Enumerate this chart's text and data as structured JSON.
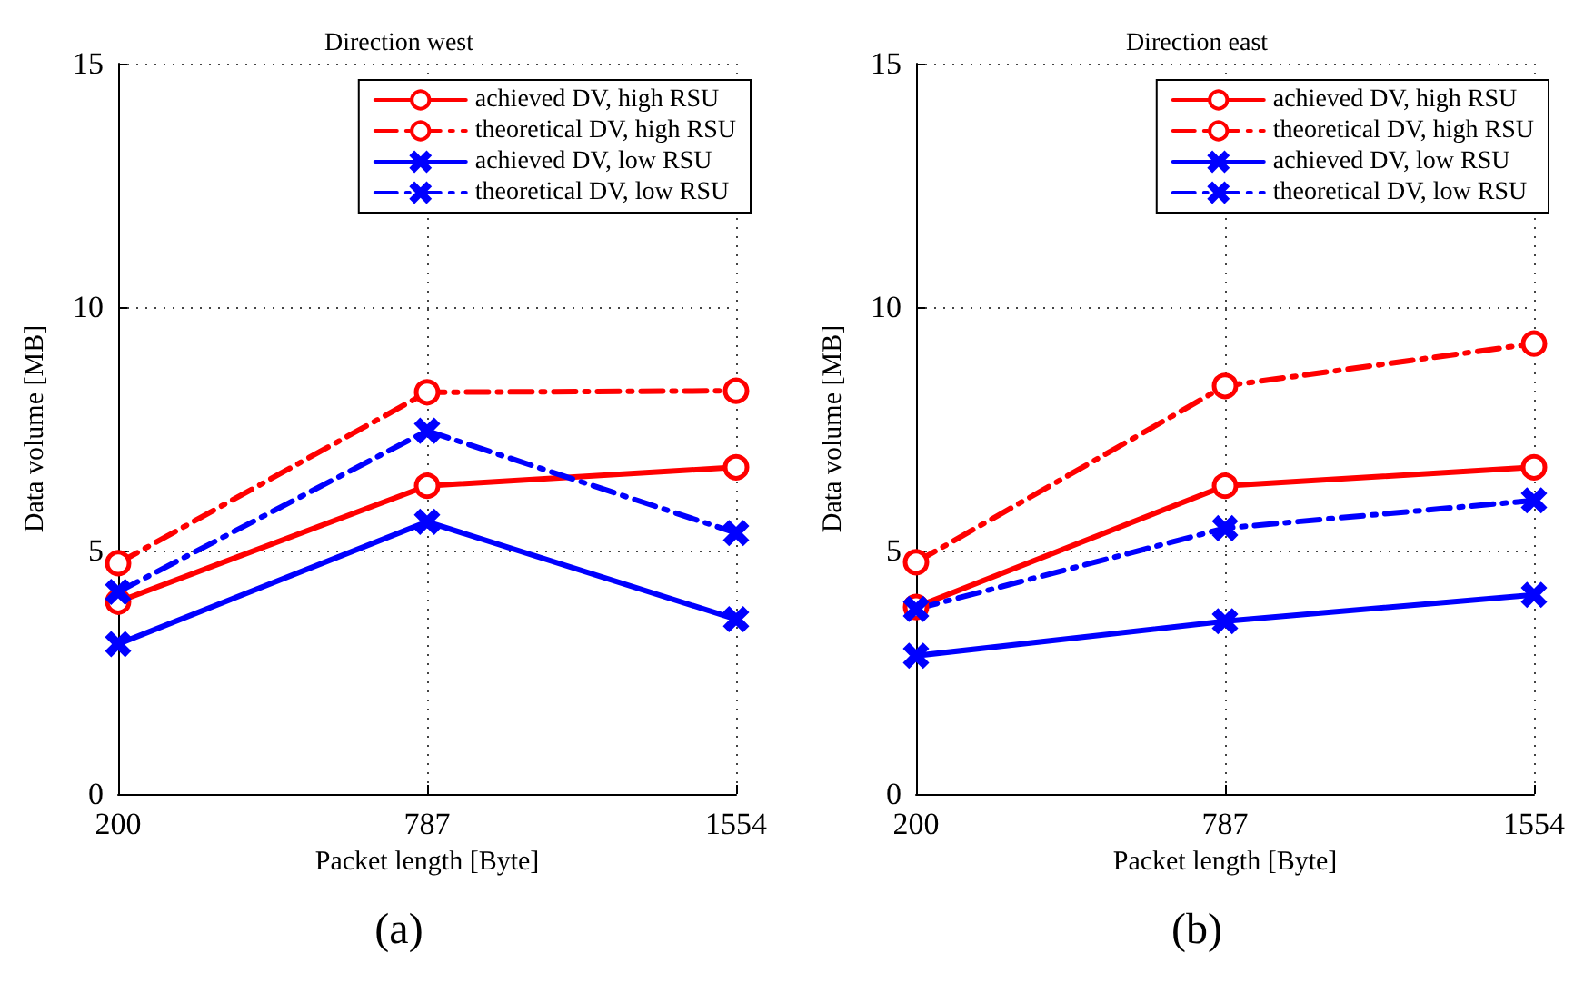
{
  "chart_data": [
    {
      "type": "line",
      "title": "Direction west",
      "xlabel": "Packet length [Byte]",
      "ylabel": "Data volume [MB]",
      "categories": [
        "200",
        "787",
        "1554"
      ],
      "ylim": [
        0,
        15
      ],
      "yticks": [
        0,
        5,
        10,
        15
      ],
      "grid": true,
      "legend": "top right",
      "annotations": [
        "(a)"
      ],
      "series": [
        {
          "name": "achieved DV, high RSU",
          "color": "#ff0000",
          "marker": "circle",
          "line_style": "solid",
          "values": [
            3.95,
            6.33,
            6.71
          ]
        },
        {
          "name": "theoretical DV, high RSU",
          "color": "#ff0000",
          "marker": "circle",
          "line_style": "dashed",
          "values": [
            4.74,
            8.25,
            8.28
          ]
        },
        {
          "name": "achieved DV, low RSU",
          "color": "#0000ff",
          "marker": "cross",
          "line_style": "solid",
          "values": [
            3.08,
            5.59,
            3.59
          ]
        },
        {
          "name": "theoretical DV, low RSU",
          "color": "#0000ff",
          "marker": "cross",
          "line_style": "dashed",
          "values": [
            4.15,
            7.46,
            5.36
          ]
        }
      ]
    },
    {
      "type": "line",
      "title": "Direction east",
      "xlabel": "Packet length [Byte]",
      "ylabel": "Data volume [MB]",
      "categories": [
        "200",
        "787",
        "1554"
      ],
      "ylim": [
        0,
        15
      ],
      "yticks": [
        0,
        5,
        10,
        15
      ],
      "grid": true,
      "legend": "top right",
      "annotations": [
        "(b)"
      ],
      "series": [
        {
          "name": "achieved DV, high RSU",
          "color": "#ff0000",
          "marker": "circle",
          "line_style": "solid",
          "values": [
            3.84,
            6.33,
            6.71
          ]
        },
        {
          "name": "theoretical DV, high RSU",
          "color": "#ff0000",
          "marker": "circle",
          "line_style": "dashed",
          "values": [
            4.76,
            8.38,
            9.25
          ]
        },
        {
          "name": "achieved DV, low RSU",
          "color": "#0000ff",
          "marker": "cross",
          "line_style": "solid",
          "values": [
            2.84,
            3.55,
            4.09
          ]
        },
        {
          "name": "theoretical DV, low RSU",
          "color": "#0000ff",
          "marker": "cross",
          "line_style": "dashed",
          "values": [
            3.8,
            5.46,
            6.03
          ]
        }
      ]
    }
  ]
}
